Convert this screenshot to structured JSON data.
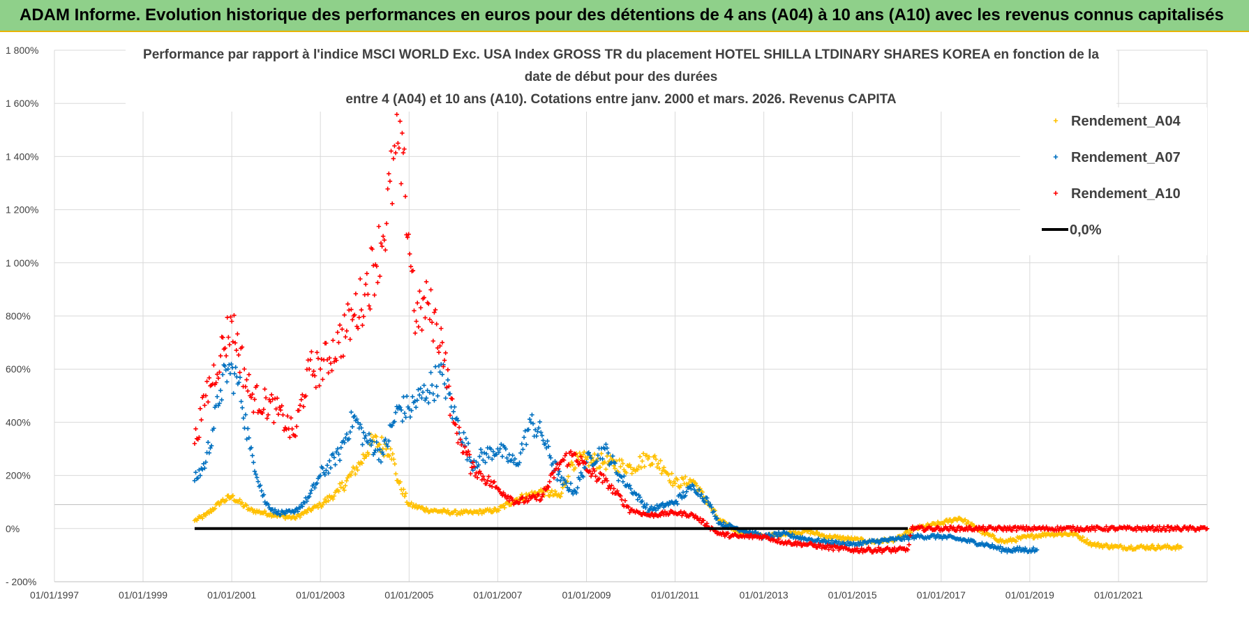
{
  "banner": {
    "title": "ADAM Informe. Evolution historique des performances en euros pour des détentions de 4 ans (A04) à 10 ans (A10) avec les revenus connus capitalisés"
  },
  "colors": {
    "banner_bg": "#8fd08a",
    "banner_border": "#e8b400",
    "A04": "#ffc000",
    "A07": "#0070c0",
    "A10": "#ff0000",
    "zero": "#000000"
  },
  "chart_data": {
    "type": "scatter",
    "title_lines": [
      "Performance par rapport à l'indice MSCI WORLD Exc. USA Index GROSS TR  du placement HOTEL SHILLA LTDINARY SHARES KOREA en fonction de la",
      "date de début pour des durées",
      "entre 4 (A04) et 10 ans (A10). Cotations entre janv. 2000 et mars. 2026. Revenus CAPITA"
    ],
    "xlabel": "",
    "ylabel": "",
    "x_axis": "date",
    "xlim": [
      "01/01/1997",
      "01/01/2023"
    ],
    "ylim": [
      -200,
      1800
    ],
    "y_unit": "%",
    "y_ticks": [
      "- 200%",
      "0%",
      "200%",
      "400%",
      "600%",
      "800%",
      "1 000%",
      "1 200%",
      "1 400%",
      "1 600%",
      "1 800%"
    ],
    "x_ticks": [
      "01/01/1997",
      "01/01/1999",
      "01/01/2001",
      "01/01/2003",
      "01/01/2005",
      "01/01/2007",
      "01/01/2009",
      "01/01/2011",
      "01/01/2013",
      "01/01/2015",
      "01/01/2017",
      "01/01/2019",
      "01/01/2021"
    ],
    "grid": true,
    "legend_position": "top-right",
    "series": [
      {
        "name": "Rendement_A04",
        "marker": "plus",
        "x": [
          "2000-03-01",
          "2000-06-01",
          "2000-10-01",
          "2001-01-01",
          "2001-06-01",
          "2002-01-01",
          "2002-06-01",
          "2003-01-01",
          "2003-06-01",
          "2003-12-01",
          "2004-03-01",
          "2004-08-01",
          "2004-10-01",
          "2005-01-01",
          "2005-06-01",
          "2006-01-01",
          "2006-06-01",
          "2007-01-01",
          "2007-06-01",
          "2008-01-01",
          "2008-06-01",
          "2008-09-01",
          "2009-01-01",
          "2009-06-01",
          "2010-01-01",
          "2010-06-01",
          "2010-10-01",
          "2011-01-01",
          "2011-06-01",
          "2012-01-01",
          "2012-06-01",
          "2013-01-01",
          "2013-06-01",
          "2014-01-01",
          "2014-06-01",
          "2015-01-01",
          "2015-06-01",
          "2016-01-01",
          "2016-06-01",
          "2017-01-01",
          "2017-06-01",
          "2018-01-01",
          "2018-06-01",
          "2019-01-01",
          "2019-06-01",
          "2020-01-01",
          "2020-06-01",
          "2021-01-01",
          "2021-06-01",
          "2022-01-01",
          "2022-06-01"
        ],
        "y": [
          30,
          50,
          100,
          120,
          70,
          50,
          40,
          90,
          140,
          250,
          330,
          300,
          180,
          90,
          70,
          60,
          60,
          70,
          110,
          140,
          120,
          250,
          260,
          250,
          230,
          270,
          230,
          170,
          180,
          30,
          -10,
          -30,
          -20,
          -10,
          -30,
          -40,
          -50,
          -40,
          0,
          20,
          40,
          -20,
          -50,
          -30,
          -20,
          -20,
          -60,
          -70,
          -70,
          -70,
          -70
        ]
      },
      {
        "name": "Rendement_A07",
        "marker": "plus",
        "x": [
          "2000-03-01",
          "2000-06-01",
          "2000-10-01",
          "2000-12-01",
          "2001-03-01",
          "2001-06-01",
          "2001-10-01",
          "2002-01-01",
          "2002-06-01",
          "2002-10-01",
          "2003-01-01",
          "2003-06-01",
          "2003-10-01",
          "2004-01-01",
          "2004-06-01",
          "2004-10-01",
          "2005-01-01",
          "2005-06-01",
          "2005-10-01",
          "2006-01-01",
          "2006-06-01",
          "2007-01-01",
          "2007-06-01",
          "2007-10-01",
          "2008-01-01",
          "2008-06-01",
          "2008-10-01",
          "2009-01-01",
          "2009-06-01",
          "2009-10-01",
          "2010-01-01",
          "2010-06-01",
          "2011-01-01",
          "2011-06-01",
          "2011-10-01",
          "2012-01-01",
          "2012-06-01",
          "2013-01-01",
          "2013-06-01",
          "2014-01-01",
          "2014-06-01",
          "2015-01-01",
          "2015-06-01",
          "2016-01-01",
          "2016-06-01",
          "2017-01-01",
          "2017-06-01",
          "2018-01-01",
          "2018-06-01",
          "2019-01-01",
          "2019-03-01"
        ],
        "y": [
          180,
          250,
          520,
          600,
          550,
          300,
          100,
          60,
          60,
          120,
          200,
          280,
          420,
          340,
          280,
          450,
          450,
          520,
          580,
          440,
          250,
          300,
          240,
          400,
          350,
          180,
          140,
          250,
          300,
          200,
          150,
          70,
          100,
          160,
          100,
          20,
          0,
          -30,
          -20,
          -40,
          -50,
          -60,
          -50,
          -40,
          -30,
          -30,
          -40,
          -60,
          -80,
          -80,
          -80
        ]
      },
      {
        "name": "Rendement_A10",
        "marker": "plus",
        "x": [
          "2000-03-01",
          "2000-06-01",
          "2000-10-01",
          "2001-01-01",
          "2001-06-01",
          "2002-01-01",
          "2002-06-01",
          "2002-10-01",
          "2003-01-01",
          "2003-06-01",
          "2003-10-01",
          "2004-01-01",
          "2004-06-01",
          "2004-10-01",
          "2004-12-01",
          "2005-03-01",
          "2005-06-01",
          "2005-10-01",
          "2006-01-01",
          "2006-06-01",
          "2007-01-01",
          "2007-06-01",
          "2008-01-01",
          "2008-06-01",
          "2008-10-01",
          "2009-01-01",
          "2009-06-01",
          "2010-01-01",
          "2010-06-01",
          "2011-01-01",
          "2011-06-01",
          "2012-01-01",
          "2012-06-01",
          "2013-01-01",
          "2013-06-01",
          "2014-01-01",
          "2014-06-01",
          "2015-01-01",
          "2015-06-01",
          "2016-01-01",
          "2016-04-01",
          "2016-05-01",
          "2017-01-01",
          "2018-01-01",
          "2019-01-01",
          "2020-01-01",
          "2021-01-01",
          "2022-01-01",
          "2023-01-01"
        ],
        "y": [
          320,
          500,
          650,
          780,
          500,
          450,
          350,
          600,
          600,
          700,
          800,
          880,
          1100,
          1450,
          1250,
          780,
          850,
          700,
          400,
          230,
          150,
          100,
          120,
          250,
          280,
          220,
          180,
          70,
          50,
          60,
          50,
          -20,
          -30,
          -30,
          -50,
          -60,
          -70,
          -80,
          -80,
          -80,
          -80,
          0,
          0,
          0,
          0,
          0,
          0,
          0,
          0
        ]
      },
      {
        "name": "0,0%",
        "marker": "line",
        "x": [
          "2000-03-01",
          "2016-04-01"
        ],
        "y": [
          0,
          0
        ]
      }
    ]
  }
}
